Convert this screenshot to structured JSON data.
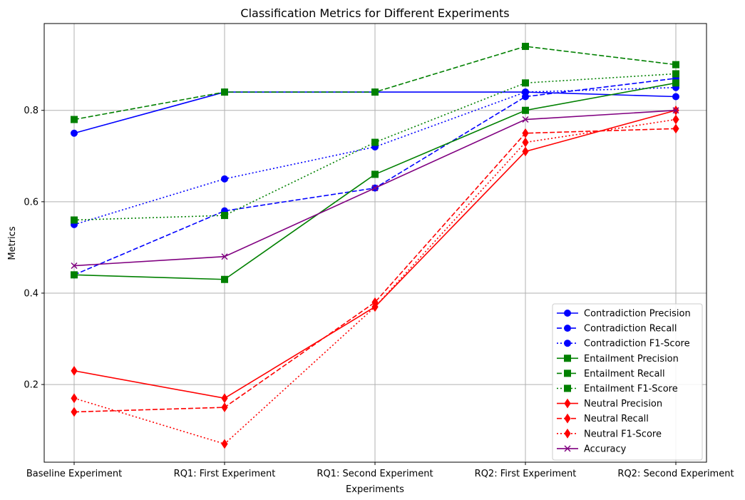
{
  "chart_data": {
    "type": "line",
    "title": "Classification Metrics for Different Experiments",
    "xlabel": "Experiments",
    "ylabel": "Metrics",
    "categories": [
      "Baseline Experiment",
      "RQ1: First Experiment",
      "RQ1: Second Experiment",
      "RQ2: First Experiment",
      "RQ2: Second Experiment"
    ],
    "yticks": [
      0.2,
      0.4,
      0.6,
      0.8
    ],
    "ytick_labels": [
      "0.2",
      "0.4",
      "0.6",
      "0.8"
    ],
    "ylim": [
      0.03,
      0.99
    ],
    "grid": true,
    "legend_position": "lower-right",
    "series": [
      {
        "name": "Contradiction Precision",
        "values": [
          0.75,
          0.84,
          0.84,
          0.84,
          0.83
        ],
        "color": "#0000ff",
        "linestyle": "solid",
        "marker": "circle"
      },
      {
        "name": "Contradiction Recall",
        "values": [
          0.44,
          0.58,
          0.63,
          0.83,
          0.87
        ],
        "color": "#0000ff",
        "linestyle": "dashed",
        "marker": "circle"
      },
      {
        "name": "Contradiction F1-Score",
        "values": [
          0.55,
          0.65,
          0.72,
          0.84,
          0.85
        ],
        "color": "#0000ff",
        "linestyle": "dotted",
        "marker": "circle"
      },
      {
        "name": "Entailment Precision",
        "values": [
          0.44,
          0.43,
          0.66,
          0.8,
          0.86
        ],
        "color": "#008000",
        "linestyle": "solid",
        "marker": "square"
      },
      {
        "name": "Entailment Recall",
        "values": [
          0.78,
          0.84,
          0.84,
          0.94,
          0.9
        ],
        "color": "#008000",
        "linestyle": "dashed",
        "marker": "square"
      },
      {
        "name": "Entailment F1-Score",
        "values": [
          0.56,
          0.57,
          0.73,
          0.86,
          0.88
        ],
        "color": "#008000",
        "linestyle": "dotted",
        "marker": "square"
      },
      {
        "name": "Neutral Precision",
        "values": [
          0.23,
          0.17,
          0.37,
          0.71,
          0.8
        ],
        "color": "#ff0000",
        "linestyle": "solid",
        "marker": "diamond"
      },
      {
        "name": "Neutral Recall",
        "values": [
          0.14,
          0.15,
          0.38,
          0.75,
          0.76
        ],
        "color": "#ff0000",
        "linestyle": "dashed",
        "marker": "diamond"
      },
      {
        "name": "Neutral F1-Score",
        "values": [
          0.17,
          0.07,
          0.37,
          0.73,
          0.78
        ],
        "color": "#ff0000",
        "linestyle": "dotted",
        "marker": "diamond"
      },
      {
        "name": "Accuracy",
        "values": [
          0.46,
          0.48,
          0.63,
          0.78,
          0.8
        ],
        "color": "#800080",
        "linestyle": "solid",
        "marker": "x"
      }
    ]
  }
}
